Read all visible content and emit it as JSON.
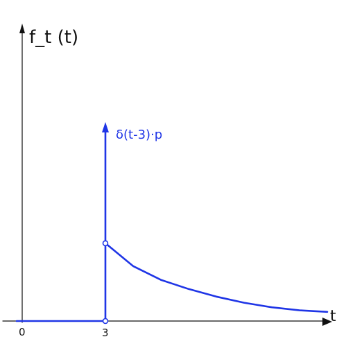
{
  "chart_data": {
    "type": "line",
    "title": "",
    "ylabel": "f_t (t)",
    "xlabel": "t",
    "x_ticks": [
      "0",
      "3"
    ],
    "xlim": [
      -0.2,
      12
    ],
    "ylim": [
      0,
      1
    ],
    "impulse": {
      "x": 3,
      "label": "δ(t-3)·p"
    },
    "series": [
      {
        "x": [
          -0.2,
          0,
          1,
          2,
          3
        ],
        "y": [
          0,
          0,
          0,
          0,
          0
        ]
      },
      {
        "x": [
          3,
          4,
          5,
          6,
          7,
          8,
          9,
          10,
          11
        ],
        "y": [
          0.51,
          0.36,
          0.27,
          0.21,
          0.16,
          0.12,
          0.09,
          0.07,
          0.06
        ]
      }
    ],
    "grid": false,
    "legend": "none",
    "colors": {
      "axes": "#111111",
      "curve": "#1f35e6"
    }
  }
}
